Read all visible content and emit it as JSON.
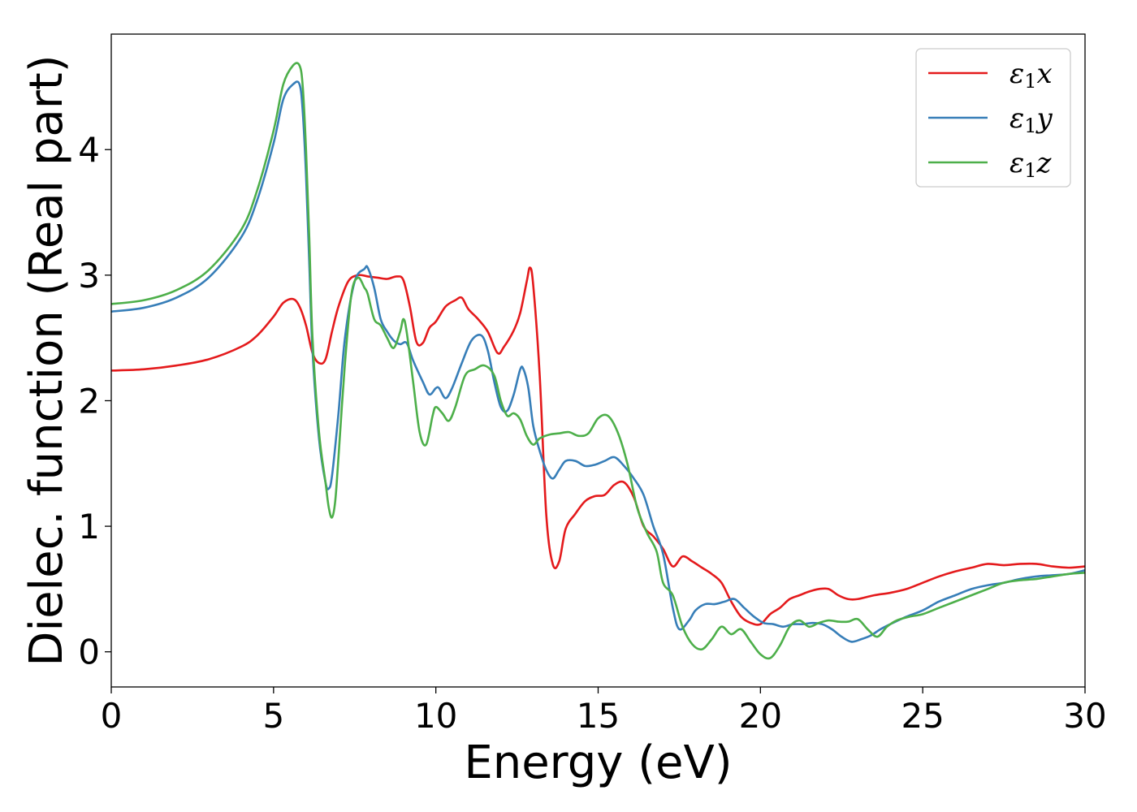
{
  "chart_data": {
    "type": "line",
    "xlabel": "Energy (eV)",
    "ylabel": "Dielec. function (Real part)",
    "xlim": [
      0,
      30
    ],
    "ylim": [
      -0.28,
      4.92
    ],
    "xticks": [
      0,
      5,
      10,
      15,
      20,
      25,
      30
    ],
    "yticks": [
      0,
      1,
      2,
      3,
      4
    ],
    "grid": false,
    "legend_position": "top-right",
    "series": [
      {
        "name": "ε1x",
        "color": "#e41a1c",
        "x": [
          0,
          1,
          2,
          3,
          4,
          4.5,
          5,
          5.3,
          5.6,
          5.8,
          6.0,
          6.2,
          6.4,
          6.6,
          6.8,
          7.0,
          7.3,
          7.6,
          7.9,
          8.2,
          8.5,
          8.8,
          9.0,
          9.2,
          9.4,
          9.6,
          9.8,
          10.0,
          10.3,
          10.6,
          10.8,
          11.0,
          11.3,
          11.6,
          11.9,
          12.1,
          12.4,
          12.6,
          12.8,
          12.9,
          13.0,
          13.2,
          13.4,
          13.6,
          13.8,
          14.0,
          14.3,
          14.6,
          14.9,
          15.2,
          15.5,
          15.8,
          16.1,
          16.4,
          16.7,
          17.0,
          17.3,
          17.6,
          17.9,
          18.2,
          18.5,
          18.8,
          19.1,
          19.4,
          19.7,
          20.0,
          20.3,
          20.6,
          20.9,
          21.2,
          21.5,
          21.8,
          22.1,
          22.4,
          22.7,
          23.0,
          23.5,
          24.0,
          24.5,
          25.0,
          25.5,
          26.0,
          26.5,
          27.0,
          27.5,
          28.0,
          28.5,
          29.0,
          29.5,
          30
        ],
        "y": [
          2.24,
          2.25,
          2.28,
          2.33,
          2.43,
          2.52,
          2.67,
          2.78,
          2.81,
          2.75,
          2.6,
          2.38,
          2.3,
          2.33,
          2.55,
          2.75,
          2.95,
          3.0,
          2.99,
          2.98,
          2.97,
          2.99,
          2.96,
          2.75,
          2.47,
          2.46,
          2.58,
          2.63,
          2.75,
          2.8,
          2.82,
          2.73,
          2.65,
          2.55,
          2.38,
          2.43,
          2.56,
          2.7,
          2.95,
          3.06,
          2.92,
          2.2,
          1.1,
          0.7,
          0.72,
          0.98,
          1.1,
          1.2,
          1.24,
          1.25,
          1.33,
          1.35,
          1.23,
          1.0,
          0.92,
          0.82,
          0.68,
          0.76,
          0.72,
          0.67,
          0.62,
          0.55,
          0.4,
          0.28,
          0.23,
          0.22,
          0.3,
          0.35,
          0.42,
          0.45,
          0.48,
          0.5,
          0.5,
          0.45,
          0.42,
          0.42,
          0.45,
          0.47,
          0.5,
          0.55,
          0.6,
          0.64,
          0.67,
          0.7,
          0.69,
          0.7,
          0.7,
          0.68,
          0.67,
          0.68
        ]
      },
      {
        "name": "ε1y",
        "color": "#377eb8",
        "x": [
          0,
          1,
          2,
          3,
          4,
          4.5,
          5,
          5.3,
          5.6,
          5.8,
          5.9,
          6.0,
          6.1,
          6.2,
          6.4,
          6.6,
          6.7,
          6.8,
          7.0,
          7.2,
          7.5,
          7.8,
          7.9,
          8.1,
          8.3,
          8.5,
          8.7,
          8.9,
          9.1,
          9.3,
          9.6,
          9.8,
          10.0,
          10.1,
          10.3,
          10.5,
          10.8,
          11.1,
          11.4,
          11.6,
          11.8,
          12.0,
          12.2,
          12.4,
          12.6,
          12.7,
          12.85,
          13.0,
          13.2,
          13.4,
          13.6,
          13.8,
          14.0,
          14.3,
          14.6,
          14.9,
          15.2,
          15.5,
          15.8,
          16.1,
          16.4,
          16.7,
          17.0,
          17.3,
          17.5,
          17.8,
          18.0,
          18.3,
          18.6,
          18.9,
          19.2,
          19.5,
          19.8,
          20.1,
          20.4,
          20.7,
          21.0,
          21.3,
          21.6,
          21.9,
          22.2,
          22.5,
          22.8,
          23.1,
          23.4,
          23.7,
          24.0,
          24.5,
          25.0,
          25.5,
          26.0,
          26.5,
          27.0,
          27.5,
          28.0,
          28.5,
          29.0,
          29.5,
          30
        ],
        "y": [
          2.71,
          2.74,
          2.82,
          2.98,
          3.3,
          3.6,
          4.05,
          4.4,
          4.52,
          4.52,
          4.3,
          3.8,
          3.1,
          2.4,
          1.7,
          1.35,
          1.3,
          1.4,
          1.9,
          2.5,
          2.95,
          3.05,
          3.06,
          2.9,
          2.65,
          2.55,
          2.48,
          2.45,
          2.46,
          2.32,
          2.15,
          2.05,
          2.1,
          2.1,
          2.02,
          2.1,
          2.3,
          2.48,
          2.52,
          2.4,
          2.15,
          1.95,
          1.92,
          2.05,
          2.25,
          2.25,
          2.1,
          1.8,
          1.6,
          1.45,
          1.38,
          1.45,
          1.52,
          1.52,
          1.48,
          1.49,
          1.52,
          1.55,
          1.48,
          1.38,
          1.25,
          1.0,
          0.78,
          0.35,
          0.18,
          0.25,
          0.33,
          0.38,
          0.38,
          0.4,
          0.42,
          0.35,
          0.28,
          0.23,
          0.22,
          0.2,
          0.22,
          0.22,
          0.23,
          0.22,
          0.18,
          0.12,
          0.08,
          0.1,
          0.13,
          0.18,
          0.22,
          0.28,
          0.33,
          0.4,
          0.45,
          0.5,
          0.53,
          0.55,
          0.58,
          0.6,
          0.61,
          0.62,
          0.65
        ]
      },
      {
        "name": "ε1z",
        "color": "#4daf4a",
        "x": [
          0,
          1,
          2,
          3,
          4,
          4.5,
          5,
          5.3,
          5.6,
          5.8,
          5.9,
          6.0,
          6.1,
          6.2,
          6.4,
          6.6,
          6.7,
          6.8,
          6.9,
          7.0,
          7.2,
          7.4,
          7.6,
          7.8,
          7.9,
          8.1,
          8.3,
          8.5,
          8.7,
          8.9,
          9.0,
          9.1,
          9.3,
          9.5,
          9.7,
          9.9,
          10.0,
          10.2,
          10.4,
          10.6,
          10.9,
          11.2,
          11.5,
          11.8,
          12.0,
          12.2,
          12.4,
          12.6,
          12.8,
          13.0,
          13.2,
          13.5,
          13.8,
          14.1,
          14.4,
          14.7,
          15.0,
          15.3,
          15.6,
          15.9,
          16.2,
          16.5,
          16.8,
          17.0,
          17.3,
          17.6,
          17.9,
          18.2,
          18.5,
          18.8,
          19.1,
          19.4,
          19.7,
          20.0,
          20.3,
          20.6,
          20.9,
          21.2,
          21.5,
          21.8,
          22.1,
          22.4,
          22.7,
          23.0,
          23.3,
          23.6,
          23.9,
          24.2,
          24.6,
          25.0,
          25.5,
          26.0,
          26.5,
          27.0,
          27.5,
          28.0,
          28.5,
          29.0,
          29.5,
          30
        ],
        "y": [
          2.77,
          2.8,
          2.88,
          3.04,
          3.36,
          3.68,
          4.15,
          4.52,
          4.67,
          4.67,
          4.5,
          4.0,
          3.3,
          2.5,
          1.75,
          1.35,
          1.15,
          1.07,
          1.2,
          1.55,
          2.3,
          2.85,
          2.98,
          2.9,
          2.85,
          2.65,
          2.6,
          2.5,
          2.42,
          2.55,
          2.65,
          2.55,
          2.15,
          1.75,
          1.65,
          1.88,
          1.95,
          1.9,
          1.84,
          1.95,
          2.2,
          2.25,
          2.28,
          2.2,
          2.0,
          1.88,
          1.9,
          1.85,
          1.72,
          1.65,
          1.7,
          1.73,
          1.74,
          1.75,
          1.72,
          1.74,
          1.86,
          1.88,
          1.75,
          1.5,
          1.15,
          0.95,
          0.8,
          0.55,
          0.45,
          0.2,
          0.06,
          0.02,
          0.1,
          0.2,
          0.14,
          0.18,
          0.08,
          -0.02,
          -0.05,
          0.05,
          0.2,
          0.25,
          0.2,
          0.23,
          0.25,
          0.24,
          0.24,
          0.26,
          0.18,
          0.12,
          0.2,
          0.25,
          0.28,
          0.3,
          0.35,
          0.4,
          0.45,
          0.5,
          0.55,
          0.57,
          0.58,
          0.6,
          0.62,
          0.63
        ]
      }
    ]
  }
}
